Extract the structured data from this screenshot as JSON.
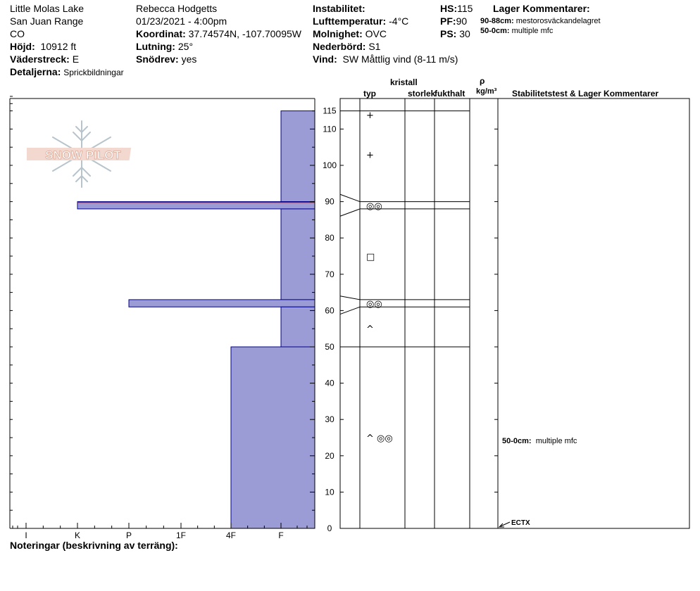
{
  "header": {
    "location": "Little Molas Lake",
    "range": "San Juan Range",
    "state": "CO",
    "elevation_label": "Höjd:",
    "elevation_value": "10912 ft",
    "aspect_label": "Väderstreck:",
    "aspect_value": "E",
    "details_label": "Detaljerna:",
    "details_value": "Sprickbildningar",
    "observer": "Rebecca Hodgetts",
    "datetime": "01/23/2021 - 4:00pm",
    "coord_label": "Koordinat:",
    "coord_value": "37.74574N, -107.70095W",
    "slope_label": "Lutning:",
    "slope_value": "25°",
    "wind_loading_label": "Snödrev:",
    "wind_loading_value": "yes",
    "instability_label": "Instabilitet:",
    "air_temp_label": "Lufttemperatur:",
    "air_temp_value": "-4°C",
    "sky_label": "Molnighet:",
    "sky_value": "OVC",
    "precip_label": "Nederbörd:",
    "precip_value": "S1",
    "wind_label": "Vind:",
    "wind_value": "SW  Måttlig vind (8-11 m/s)",
    "hs_label": "HS:",
    "hs_value": "115",
    "pf_label": "PF:",
    "pf_value": "90",
    "ps_label": "PS:",
    "ps_value": "30",
    "layer_comments_title": "Lager Kommentarer:",
    "layer_comments": [
      {
        "range": "90-88cm:",
        "text": "mestorosväckandelagret"
      },
      {
        "range": "50-0cm:",
        "text": "multiple mfc"
      }
    ]
  },
  "logo_text": "SNOW PILOT",
  "notes_label": "Noteringar (beskrivning av terräng):",
  "columns": {
    "crystal": "kristall",
    "type": "typ",
    "size": "storlek",
    "moisture": "fukthalt",
    "rho": "ρ",
    "density_unit": "kg/m³",
    "stability_title": "Stabilitetstest & Lager Kommentarer"
  },
  "stability_comment": {
    "range": "50-0cm:",
    "text": "multiple mfc"
  },
  "stability_test": "ECTX",
  "colors": {
    "bar_fill": "#9b9bd6",
    "bar_stroke": "#00008b",
    "highlight": "#cc0000"
  },
  "chart_data": {
    "type": "bar",
    "title": "",
    "xlabel": "",
    "ylabel": "",
    "hardness_categories": [
      "I",
      "K",
      "P",
      "1F",
      "4F",
      "F"
    ],
    "y_ticks": [
      0,
      10,
      20,
      30,
      40,
      50,
      60,
      70,
      80,
      90,
      100,
      110,
      115
    ],
    "ylim": [
      0,
      115
    ],
    "layers": [
      {
        "top": 115,
        "bottom": 90,
        "hardness": "F"
      },
      {
        "top": 90,
        "bottom": 88,
        "hardness": "K",
        "highlight": true
      },
      {
        "top": 88,
        "bottom": 63,
        "hardness": "F"
      },
      {
        "top": 63,
        "bottom": 61,
        "hardness": "P"
      },
      {
        "top": 61,
        "bottom": 50,
        "hardness": "F"
      },
      {
        "top": 50,
        "bottom": 0,
        "hardness": "4F"
      }
    ],
    "crystal_symbols": [
      {
        "depth": 114,
        "symbol": "+"
      },
      {
        "depth": 103,
        "symbol": "+"
      },
      {
        "depth": 89,
        "symbol": "◎◎"
      },
      {
        "depth": 75,
        "symbol": "□"
      },
      {
        "depth": 62,
        "symbol": "◎◎"
      },
      {
        "depth": 55,
        "symbol": "^"
      },
      {
        "depth": 25,
        "symbol": "^ ◎◎"
      }
    ]
  }
}
